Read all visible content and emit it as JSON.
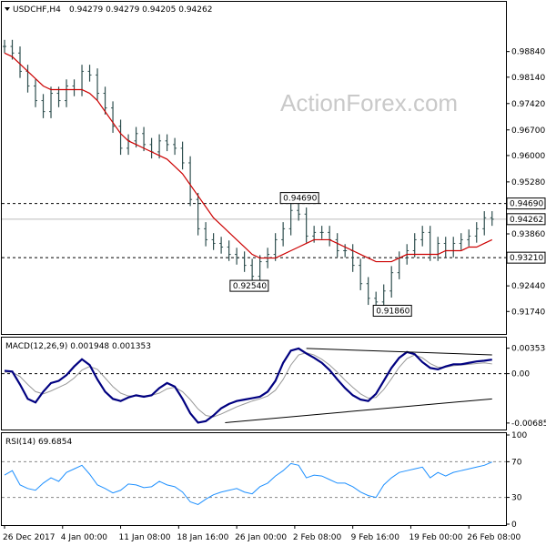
{
  "header": {
    "symbol": "USDCHF,H4",
    "ohlc": "0.94279 0.94279 0.94205 0.94262"
  },
  "watermark": "ActionForex.com",
  "colors": {
    "candle": "#2f4f4f",
    "ma": "#cc0000",
    "macd": "#000080",
    "signal": "#999999",
    "rsi": "#1e90ff",
    "trend": "#000000"
  },
  "chart_data": [
    {
      "type": "line",
      "panel": "price",
      "ylim": [
        0.9125,
        1.0
      ],
      "y_ticks": [
        "0.98840",
        "0.98140",
        "0.97420",
        "0.96700",
        "0.96000",
        "0.95280",
        "0.94690",
        "0.94262",
        "0.93860",
        "0.93210",
        "0.92440",
        "0.91740"
      ],
      "y_tick_values": [
        0.9884,
        0.9814,
        0.9742,
        0.967,
        0.96,
        0.9528,
        0.9469,
        0.94262,
        0.9386,
        0.9321,
        0.9244,
        0.9174
      ],
      "current_price": 0.94262,
      "horizontal_levels": [
        0.9469,
        0.9321
      ],
      "annotations": [
        {
          "text": "0.94690",
          "x": 76,
          "y": 0.9469
        },
        {
          "text": "0.92540",
          "x": 63,
          "y": 0.9254
        },
        {
          "text": "0.91860",
          "x": 100,
          "y": 0.9186
        }
      ],
      "x": [
        0,
        2,
        4,
        6,
        8,
        10,
        12,
        14,
        16,
        18,
        20,
        22,
        24,
        26,
        28,
        30,
        32,
        34,
        36,
        38,
        40,
        42,
        44,
        46,
        48,
        50,
        52,
        54,
        56,
        58,
        60,
        62,
        64,
        66,
        68,
        70,
        72,
        74,
        76,
        78,
        80,
        82,
        84,
        86,
        88,
        90,
        92,
        94,
        96,
        98,
        100,
        102,
        104,
        106,
        108,
        110,
        112,
        114,
        116,
        118,
        120,
        122,
        124,
        126
      ],
      "series": [
        {
          "role": "close",
          "values": [
            0.9898,
            0.988,
            0.983,
            0.979,
            0.975,
            0.972,
            0.977,
            0.975,
            0.979,
            0.978,
            0.983,
            0.982,
            0.977,
            0.973,
            0.968,
            0.962,
            0.964,
            0.966,
            0.963,
            0.961,
            0.964,
            0.963,
            0.962,
            0.958,
            0.948,
            0.94,
            0.937,
            0.936,
            0.935,
            0.933,
            0.932,
            0.93,
            0.927,
            0.931,
            0.933,
            0.937,
            0.94,
            0.945,
            0.944,
            0.938,
            0.939,
            0.939,
            0.937,
            0.934,
            0.934,
            0.93,
            0.925,
            0.921,
            0.92,
            0.923,
            0.928,
            0.932,
            0.934,
            0.937,
            0.939,
            0.933,
            0.936,
            0.934,
            0.936,
            0.937,
            0.938,
            0.94,
            0.943,
            0.9426
          ]
        },
        {
          "role": "moving-average",
          "values": [
            0.988,
            0.987,
            0.985,
            0.983,
            0.981,
            0.979,
            0.978,
            0.978,
            0.978,
            0.978,
            0.978,
            0.977,
            0.975,
            0.972,
            0.969,
            0.966,
            0.964,
            0.963,
            0.962,
            0.961,
            0.96,
            0.959,
            0.957,
            0.955,
            0.952,
            0.949,
            0.946,
            0.943,
            0.941,
            0.939,
            0.937,
            0.935,
            0.933,
            0.932,
            0.932,
            0.932,
            0.933,
            0.934,
            0.935,
            0.936,
            0.937,
            0.937,
            0.937,
            0.936,
            0.935,
            0.934,
            0.933,
            0.932,
            0.931,
            0.931,
            0.931,
            0.932,
            0.933,
            0.933,
            0.933,
            0.933,
            0.933,
            0.934,
            0.934,
            0.934,
            0.935,
            0.935,
            0.936,
            0.937
          ]
        }
      ]
    },
    {
      "type": "line",
      "panel": "macd",
      "label": "MACD(12,26,9) 0.001948 0.001353",
      "ylim": [
        -0.0075,
        0.0045
      ],
      "y_ticks": [
        "0.003538",
        "0.00",
        "-0.006853"
      ],
      "y_tick_values": [
        0.003538,
        0,
        -0.006853
      ],
      "x": [
        0,
        2,
        4,
        6,
        8,
        10,
        12,
        14,
        16,
        18,
        20,
        22,
        24,
        26,
        28,
        30,
        32,
        34,
        36,
        38,
        40,
        42,
        44,
        46,
        48,
        50,
        52,
        54,
        56,
        58,
        60,
        62,
        64,
        66,
        68,
        70,
        72,
        74,
        76,
        78,
        80,
        82,
        84,
        86,
        88,
        90,
        92,
        94,
        96,
        98,
        100,
        102,
        104,
        106,
        108,
        110,
        112,
        114,
        116,
        118,
        120,
        122,
        124,
        126
      ],
      "series": [
        {
          "role": "macd",
          "values": [
            0.0004,
            0.0003,
            -0.0015,
            -0.0035,
            -0.004,
            -0.0025,
            -0.0013,
            -0.001,
            -0.0002,
            0.001,
            0.002,
            0.0012,
            -0.0008,
            -0.0025,
            -0.0035,
            -0.0038,
            -0.0033,
            -0.003,
            -0.0032,
            -0.003,
            -0.002,
            -0.0013,
            -0.0018,
            -0.0035,
            -0.0055,
            -0.0068,
            -0.0066,
            -0.0058,
            -0.0048,
            -0.0042,
            -0.0038,
            -0.0036,
            -0.0034,
            -0.0032,
            -0.0025,
            -0.001,
            0.0015,
            0.0032,
            0.0035,
            0.0028,
            0.0022,
            0.0015,
            0.0005,
            -0.0008,
            -0.002,
            -0.003,
            -0.0036,
            -0.0038,
            -0.0028,
            -0.001,
            0.0008,
            0.0022,
            0.003,
            0.0027,
            0.0016,
            0.0008,
            0.0006,
            0.001,
            0.0013,
            0.0013,
            0.0015,
            0.0017,
            0.0018,
            0.00195
          ]
        },
        {
          "role": "signal",
          "values": [
            0.0002,
            0.0002,
            -0.0004,
            -0.0015,
            -0.0025,
            -0.0028,
            -0.0024,
            -0.0019,
            -0.0014,
            -0.0006,
            0.0005,
            0.001,
            0.0006,
            -0.0006,
            -0.0018,
            -0.0027,
            -0.0031,
            -0.0031,
            -0.0031,
            -0.003,
            -0.0027,
            -0.0021,
            -0.0019,
            -0.0025,
            -0.0036,
            -0.0049,
            -0.0058,
            -0.006,
            -0.0056,
            -0.0051,
            -0.0046,
            -0.0042,
            -0.0038,
            -0.0035,
            -0.0031,
            -0.0023,
            -0.0008,
            0.0012,
            0.0026,
            0.0029,
            0.0026,
            0.002,
            0.0012,
            0.0002,
            -0.0009,
            -0.0019,
            -0.0028,
            -0.0034,
            -0.0033,
            -0.0022,
            -0.0007,
            0.0009,
            0.0021,
            0.0026,
            0.0022,
            0.0014,
            0.0009,
            0.0009,
            0.0011,
            0.0012,
            0.0013,
            0.0014,
            0.0015,
            0.00135
          ]
        }
      ],
      "trendlines": [
        {
          "from": [
            57,
            -0.0068
          ],
          "to": [
            126,
            -0.0035
          ]
        },
        {
          "from": [
            78,
            0.0035
          ],
          "to": [
            126,
            0.0026
          ]
        }
      ]
    },
    {
      "type": "line",
      "panel": "rsi",
      "label": "RSI(14) 69.6854",
      "ylim": [
        0,
        100
      ],
      "y_ticks": [
        "100",
        "70",
        "30",
        "0"
      ],
      "y_tick_values": [
        100,
        70,
        30,
        0
      ],
      "guide_levels": [
        70,
        30
      ],
      "x_ticks": [
        "26 Dec 2017",
        "4 Jan 00:00",
        "11 Jan 08:00",
        "18 Jan 16:00",
        "26 Jan 00:00",
        "2 Feb 08:00",
        "9 Feb 16:00",
        "19 Feb 00:00",
        "26 Feb 08:00"
      ],
      "x_tick_values": [
        0,
        15,
        30,
        45,
        60,
        75,
        90,
        105,
        120
      ],
      "x": [
        0,
        2,
        4,
        6,
        8,
        10,
        12,
        14,
        16,
        18,
        20,
        22,
        24,
        26,
        28,
        30,
        32,
        34,
        36,
        38,
        40,
        42,
        44,
        46,
        48,
        50,
        52,
        54,
        56,
        58,
        60,
        62,
        64,
        66,
        68,
        70,
        72,
        74,
        76,
        78,
        80,
        82,
        84,
        86,
        88,
        90,
        92,
        94,
        96,
        98,
        100,
        102,
        104,
        106,
        108,
        110,
        112,
        114,
        116,
        118,
        120,
        122,
        124,
        126
      ],
      "series": [
        {
          "role": "rsi",
          "values": [
            55,
            60,
            44,
            40,
            38,
            46,
            52,
            48,
            58,
            62,
            66,
            56,
            44,
            40,
            35,
            38,
            45,
            44,
            41,
            42,
            48,
            44,
            42,
            36,
            25,
            22,
            28,
            33,
            36,
            38,
            40,
            36,
            34,
            42,
            46,
            54,
            60,
            68,
            66,
            52,
            55,
            54,
            50,
            46,
            46,
            42,
            36,
            32,
            30,
            44,
            52,
            58,
            60,
            62,
            64,
            52,
            58,
            54,
            58,
            60,
            62,
            64,
            66,
            69.7
          ]
        }
      ]
    }
  ]
}
